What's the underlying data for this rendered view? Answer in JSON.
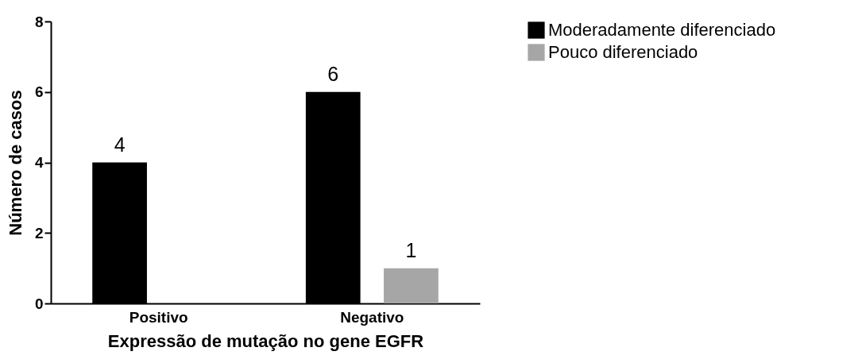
{
  "chart_data": {
    "type": "bar",
    "xlabel": "Expressão de mutação no gene EGFR",
    "ylabel": "Número de casos",
    "categories": [
      "Positivo",
      "Negativo"
    ],
    "series": [
      {
        "name": "Moderadamente diferenciado",
        "color": "#000000",
        "values": [
          4,
          6
        ]
      },
      {
        "name": "Pouco diferenciado",
        "color": "#a6a6a6",
        "values": [
          null,
          1
        ]
      }
    ],
    "ylim": [
      0,
      8
    ],
    "yticks": [
      0,
      2,
      4,
      6,
      8
    ],
    "grid": false,
    "legend": "top right",
    "data_labels": true
  }
}
